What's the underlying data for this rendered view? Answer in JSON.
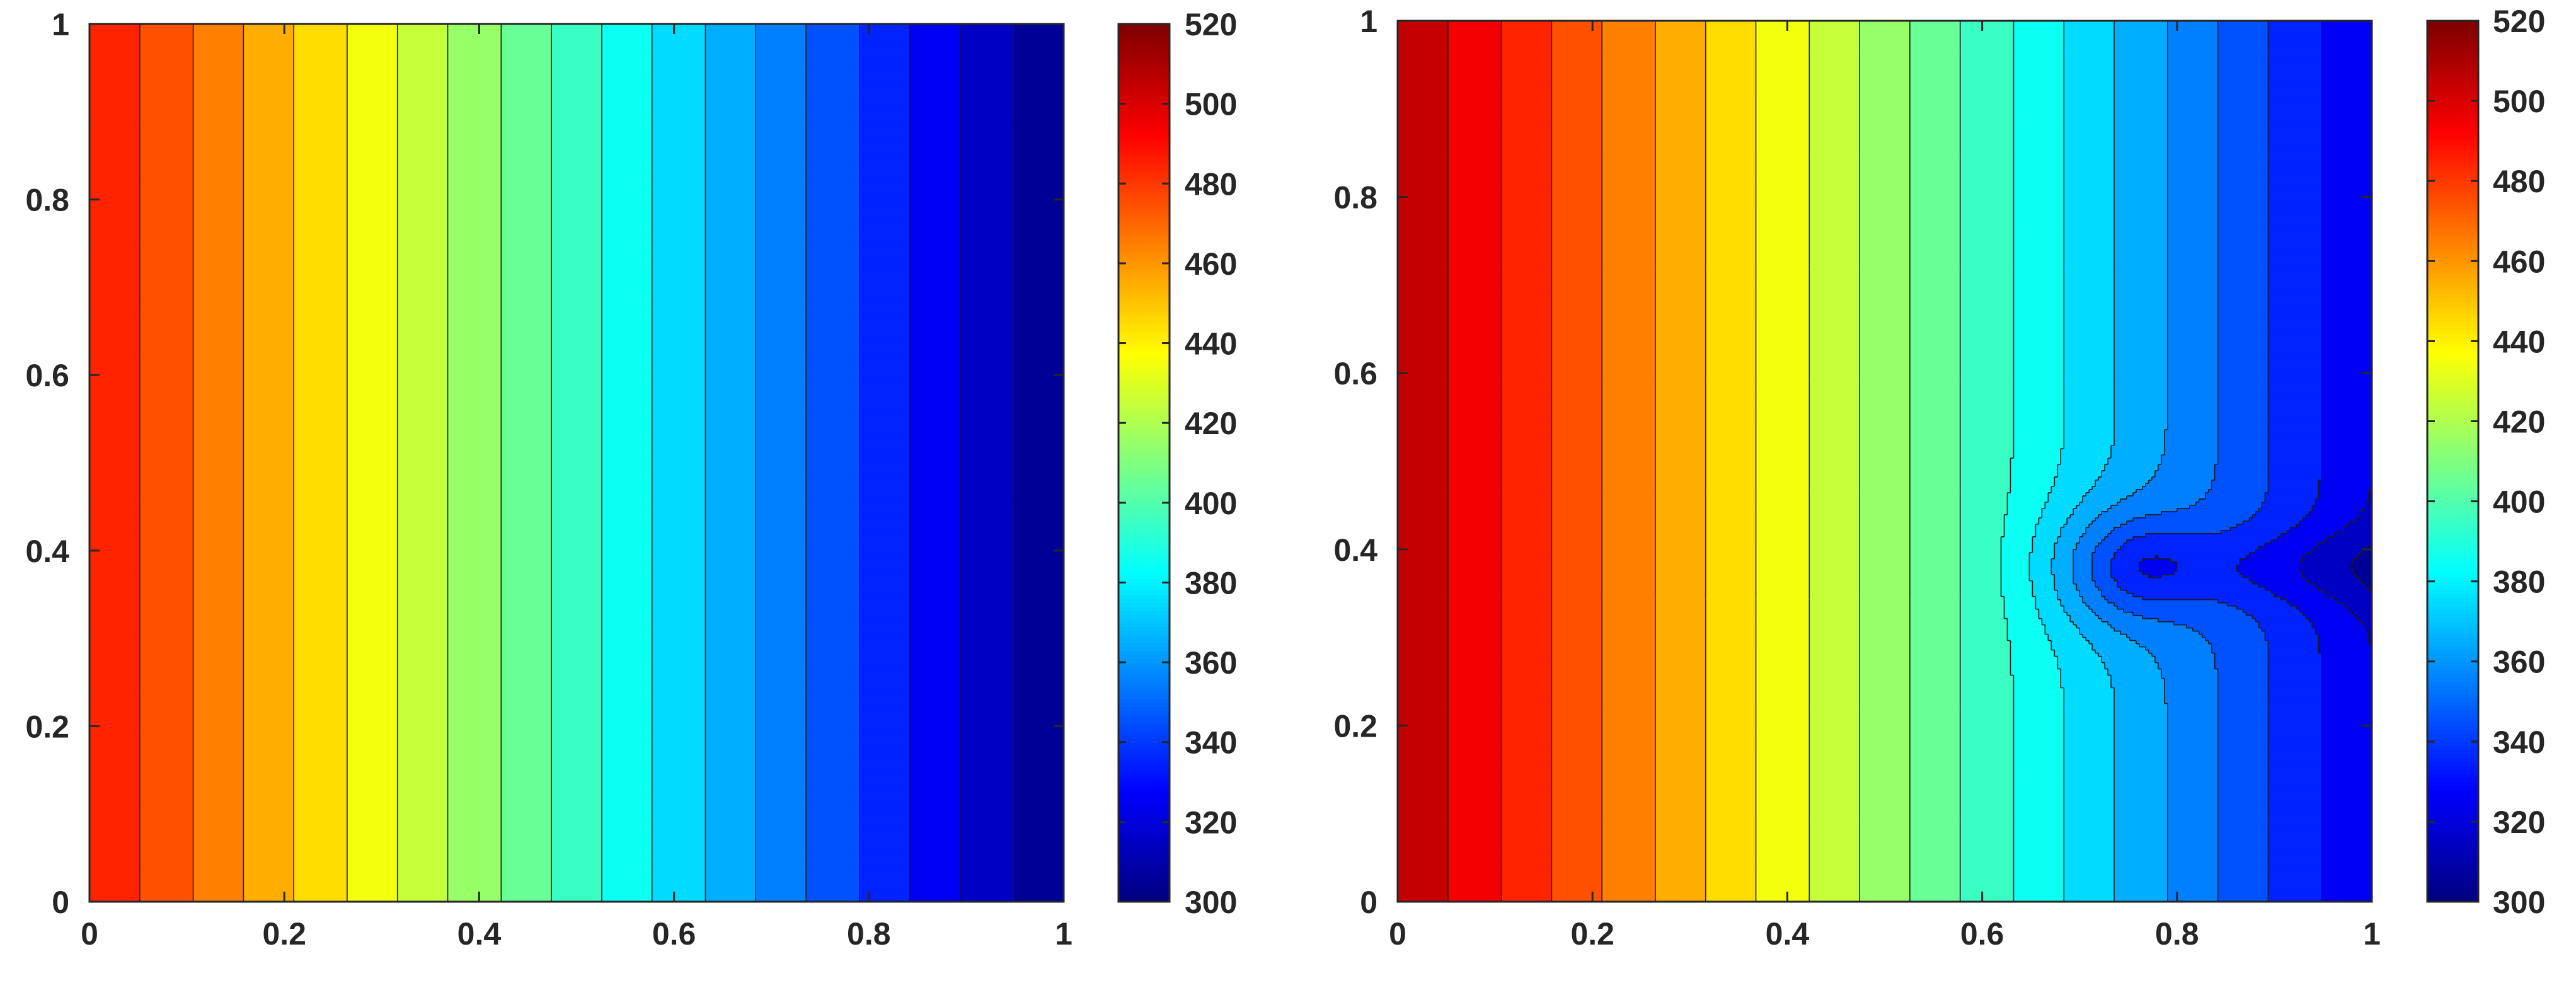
{
  "chart_data": [
    {
      "type": "heatmap",
      "subtype": "filled-contour",
      "title": "",
      "xlabel": "",
      "ylabel": "",
      "xlim": [
        0,
        1
      ],
      "ylim": [
        0,
        1
      ],
      "grid": false,
      "colormap": "jet",
      "colorbar": {
        "range": [
          300,
          520
        ],
        "ticks": [
          "300",
          "320",
          "340",
          "360",
          "380",
          "400",
          "420",
          "440",
          "460",
          "480",
          "500",
          "520"
        ]
      },
      "x_ticks": [
        "0",
        "0.2",
        "0.4",
        "0.6",
        "0.8",
        "1"
      ],
      "y_ticks": [
        "0",
        "0.2",
        "0.4",
        "0.6",
        "0.8",
        "1"
      ],
      "field": "uniform linear gradient along x",
      "x": [
        0,
        0.1,
        0.2,
        0.3,
        0.4,
        0.5,
        0.6,
        0.7,
        0.8,
        0.9,
        1.0
      ],
      "values": [
        490,
        469,
        448,
        427,
        406,
        385,
        364,
        343,
        322,
        301,
        300
      ]
    },
    {
      "type": "heatmap",
      "subtype": "filled-contour",
      "title": "",
      "xlabel": "",
      "ylabel": "",
      "xlim": [
        0,
        1
      ],
      "ylim": [
        0,
        1
      ],
      "grid": false,
      "colormap": "jet",
      "colorbar": {
        "range": [
          300,
          520
        ],
        "ticks": [
          "300",
          "320",
          "340",
          "360",
          "380",
          "400",
          "420",
          "440",
          "460",
          "480",
          "500",
          "520"
        ]
      },
      "x_ticks": [
        "0",
        "0.2",
        "0.4",
        "0.6",
        "0.8",
        "1"
      ],
      "y_ticks": [
        "0",
        "0.2",
        "0.4",
        "0.6",
        "0.8",
        "1"
      ],
      "field": "linear gradient along x perturbed by a cold circular region near (0.74, 0.38) with a cold streak to the right edge",
      "x": [
        0,
        0.1,
        0.2,
        0.3,
        0.4,
        0.5,
        0.6,
        0.7,
        0.8,
        0.9,
        1.0
      ],
      "values": [
        510,
        480,
        455,
        435,
        408,
        385,
        368,
        355,
        330,
        322,
        318
      ],
      "feature": {
        "x": 0.74,
        "y": 0.38,
        "value": 328
      }
    }
  ]
}
